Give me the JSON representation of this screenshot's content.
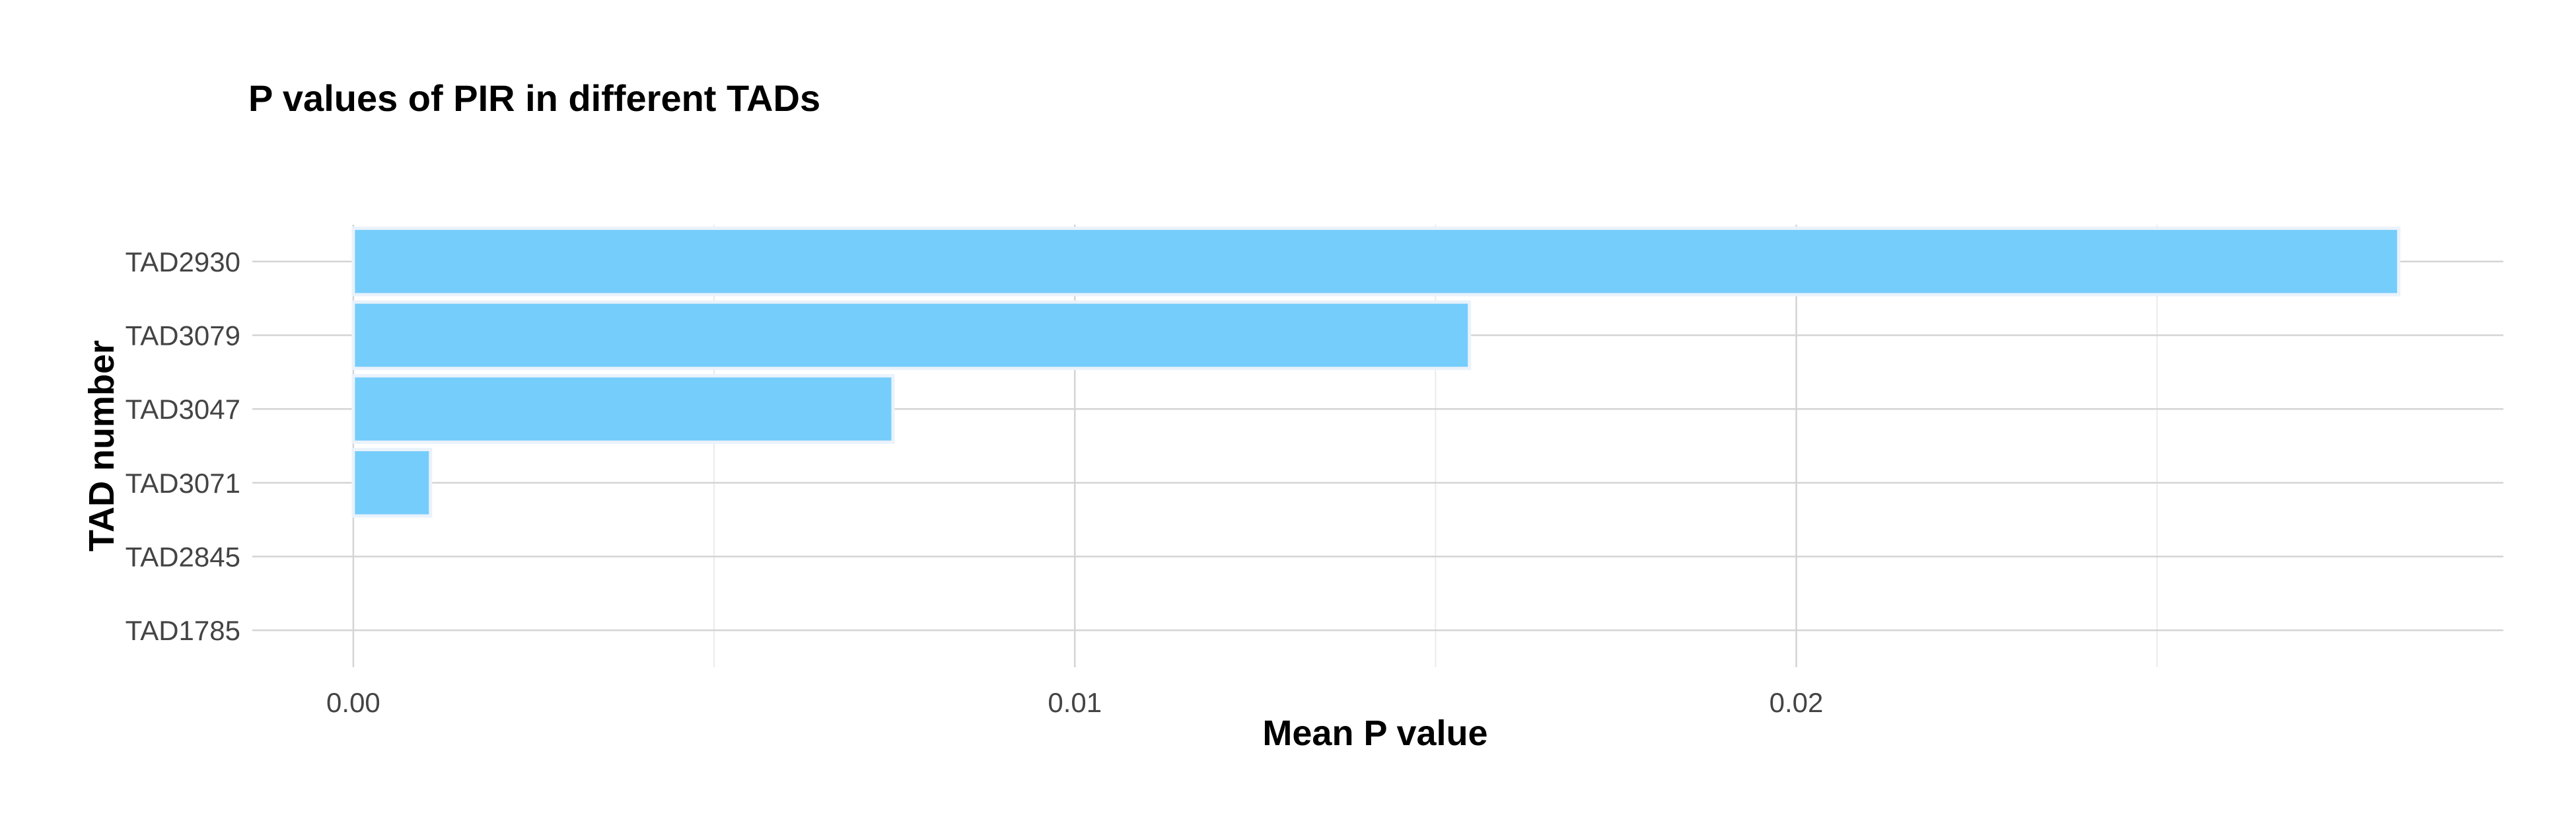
{
  "chart_data": {
    "type": "bar",
    "orientation": "horizontal",
    "title": "P values of PIR in different TADs",
    "xlabel": "Mean P value",
    "ylabel": "TAD number",
    "categories": [
      "TAD2930",
      "TAD3079",
      "TAD3047",
      "TAD3071",
      "TAD2845",
      "TAD1785"
    ],
    "values": [
      0.02835,
      0.01547,
      0.00748,
      0.00107,
      0.0,
      0.0
    ],
    "xlim": [
      -0.0014,
      0.0298
    ],
    "xticks": [
      0.0,
      0.01,
      0.02
    ],
    "xtick_labels": [
      "0.00",
      "0.01",
      "0.02"
    ],
    "bar_color": "#75cdfb",
    "grid": true,
    "legend": "none"
  }
}
